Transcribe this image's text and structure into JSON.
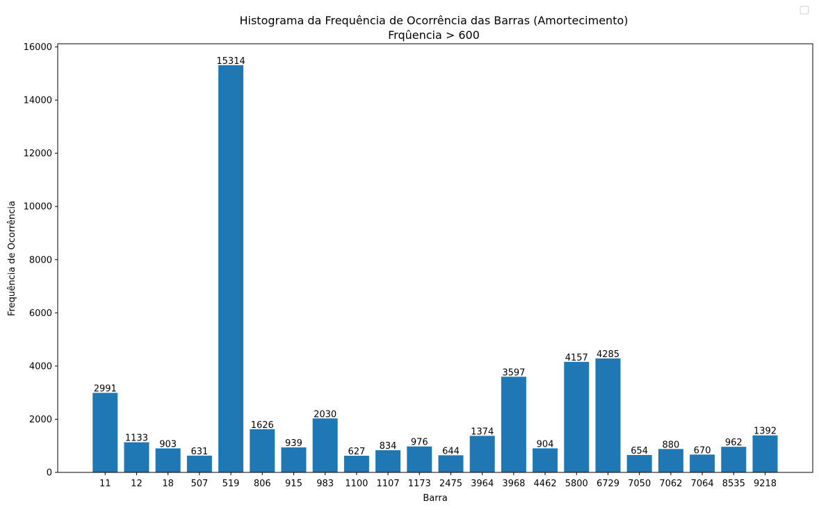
{
  "chart_data": {
    "type": "bar",
    "title": "Histograma da Frequência de Ocorrência das Barras (Amortecimento)",
    "subtitle": "Frqûencia > 600",
    "xlabel": "Barra",
    "ylabel": "Frequência de Ocorrência",
    "categories": [
      "11",
      "12",
      "18",
      "507",
      "519",
      "806",
      "915",
      "983",
      "1100",
      "1107",
      "1173",
      "2475",
      "3964",
      "3968",
      "4462",
      "5800",
      "6729",
      "7050",
      "7062",
      "7064",
      "8535",
      "9218"
    ],
    "values": [
      2991,
      1133,
      903,
      631,
      15314,
      1626,
      939,
      2030,
      627,
      834,
      976,
      644,
      1374,
      3597,
      904,
      4157,
      4285,
      654,
      880,
      670,
      962,
      1392
    ],
    "ylim": [
      0,
      16000
    ],
    "yticks": [
      0,
      2000,
      4000,
      6000,
      8000,
      10000,
      12000,
      14000,
      16000
    ],
    "grid": false,
    "legend": "top-right, empty",
    "bar_color": "#1f77b4"
  }
}
